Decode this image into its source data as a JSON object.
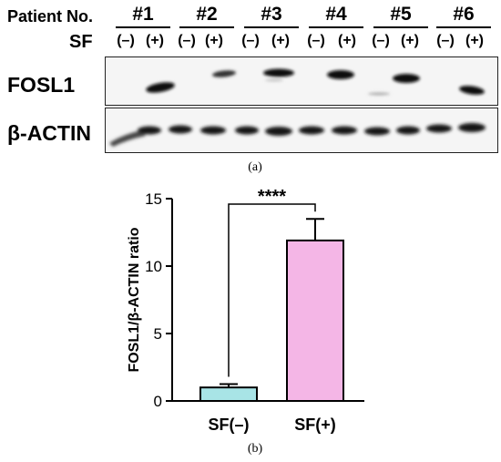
{
  "panel_a": {
    "patient_header": "Patient No.",
    "sf_header": "SF",
    "patients": [
      "#1",
      "#2",
      "#3",
      "#4",
      "#5",
      "#6"
    ],
    "lane_signs": [
      "(–)",
      "(+)",
      "(–)",
      "(+)",
      "(–)",
      "(+)",
      "(–)",
      "(+)",
      "(–)",
      "(+)",
      "(–)",
      "(+)"
    ],
    "rows": [
      "FOSL1",
      "β-ACTIN"
    ],
    "caption": "(a)"
  },
  "panel_b": {
    "caption": "(b)"
  },
  "chart_data": {
    "type": "bar",
    "categories": [
      "SF(–)",
      "SF(+)"
    ],
    "values": [
      1.0,
      11.9
    ],
    "error_upper": [
      1.25,
      13.5
    ],
    "ylabel": "FOSL1/β-ACTIN ratio",
    "ylim": [
      0,
      15
    ],
    "yticks": [
      0,
      5,
      10,
      15
    ],
    "significance": "****",
    "colors": {
      "SF(–)": "#a8e4e6",
      "SF(+)": "#f4b6e6"
    }
  }
}
